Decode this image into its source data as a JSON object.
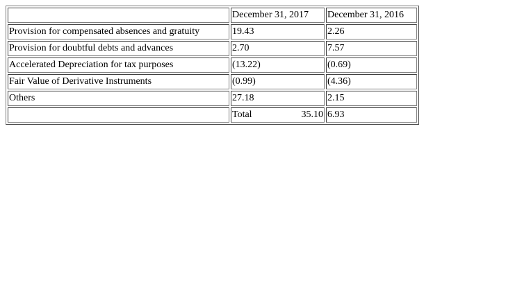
{
  "table": {
    "headers": [
      "",
      "December 31, 2017",
      "December 31, 2016"
    ],
    "rows": [
      {
        "label": "Provision for compensated absences and gratuity",
        "v2017": "19.43",
        "v2016": "2.26"
      },
      {
        "label": "Provision for doubtful debts and advances",
        "v2017": "2.70",
        "v2016": "7.57"
      },
      {
        "label": "Accelerated Depreciation for tax purposes",
        "v2017": "(13.22)",
        "v2016": "(0.69)"
      },
      {
        "label": "Fair Value of Derivative Instruments",
        "v2017": "(0.99)",
        "v2016": "(4.36)"
      },
      {
        "label": "Others",
        "v2017": "27.18",
        "v2016": "2.15"
      }
    ],
    "total": {
      "label": "",
      "total_label": "Total",
      "v2017": "35.10",
      "v2016": "6.93"
    }
  }
}
